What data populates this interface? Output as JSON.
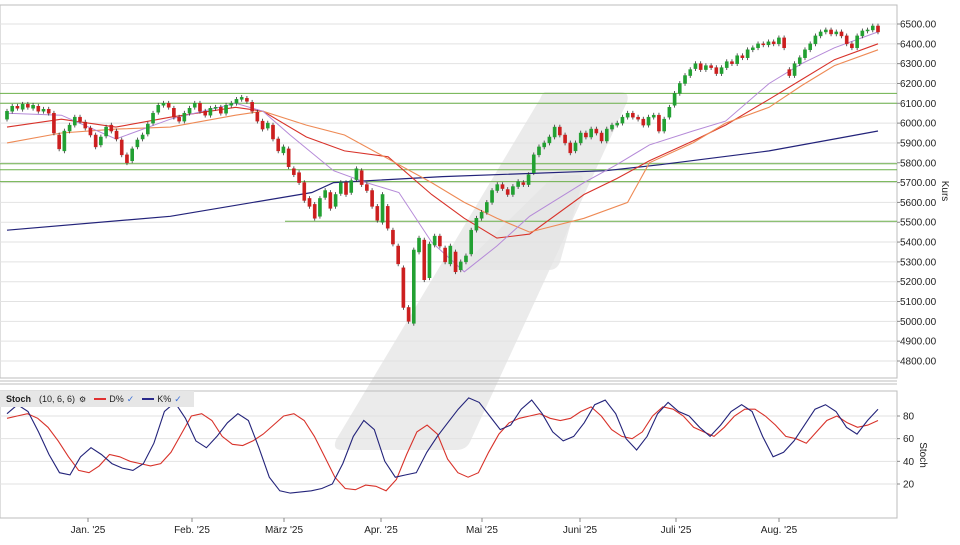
{
  "chart_data": [
    {
      "type": "candlestick",
      "title": "",
      "ylabel": "Kurs",
      "ylim": [
        4650,
        6560
      ],
      "y_ticks": [
        "6500.00",
        "6400.00",
        "6300.00",
        "6200.00",
        "6100.00",
        "6000.00",
        "5900.00",
        "5800.00",
        "5700.00",
        "5600.00",
        "5500.00",
        "5400.00",
        "5300.00",
        "5200.00",
        "5100.00",
        "5000.00",
        "4900.00",
        "4800.00"
      ],
      "x_ticks": [
        "Jan. '25",
        "Feb. '25",
        "März '25",
        "Apr. '25",
        "Mai '25",
        "Juni '25",
        "Juli '25",
        "Aug. '25"
      ],
      "horizontal_levels": [
        6150,
        6100,
        5795,
        5765,
        5705,
        5505
      ],
      "candles": [
        {
          "o": 6020,
          "c": 6060
        },
        {
          "o": 6060,
          "c": 6085
        },
        {
          "o": 6085,
          "c": 6075
        },
        {
          "o": 6070,
          "c": 6095
        },
        {
          "o": 6095,
          "c": 6080
        },
        {
          "o": 6075,
          "c": 6090
        },
        {
          "o": 6085,
          "c": 6060
        },
        {
          "o": 6060,
          "c": 6070
        },
        {
          "o": 6070,
          "c": 6050
        },
        {
          "o": 6050,
          "c": 5950
        },
        {
          "o": 5940,
          "c": 5870
        },
        {
          "o": 5860,
          "c": 5960
        },
        {
          "o": 5960,
          "c": 5990
        },
        {
          "o": 5990,
          "c": 6030
        },
        {
          "o": 6030,
          "c": 6010
        },
        {
          "o": 6005,
          "c": 5975
        },
        {
          "o": 5975,
          "c": 5940
        },
        {
          "o": 5940,
          "c": 5880
        },
        {
          "o": 5890,
          "c": 5930
        },
        {
          "o": 5935,
          "c": 5980
        },
        {
          "o": 5990,
          "c": 5960
        },
        {
          "o": 5960,
          "c": 5920
        },
        {
          "o": 5915,
          "c": 5840
        },
        {
          "o": 5840,
          "c": 5800
        },
        {
          "o": 5810,
          "c": 5870
        },
        {
          "o": 5880,
          "c": 5915
        },
        {
          "o": 5920,
          "c": 5940
        },
        {
          "o": 5945,
          "c": 5995
        },
        {
          "o": 6000,
          "c": 6050
        },
        {
          "o": 6055,
          "c": 6090
        },
        {
          "o": 6090,
          "c": 6100
        },
        {
          "o": 6100,
          "c": 6080
        },
        {
          "o": 6075,
          "c": 6030
        },
        {
          "o": 6030,
          "c": 6010
        },
        {
          "o": 6010,
          "c": 6050
        },
        {
          "o": 6050,
          "c": 6075
        },
        {
          "o": 6080,
          "c": 6100
        },
        {
          "o": 6100,
          "c": 6060
        },
        {
          "o": 6060,
          "c": 6040
        },
        {
          "o": 6040,
          "c": 6075
        },
        {
          "o": 6075,
          "c": 6080
        },
        {
          "o": 6080,
          "c": 6050
        },
        {
          "o": 6050,
          "c": 6090
        },
        {
          "o": 6090,
          "c": 6100
        },
        {
          "o": 6100,
          "c": 6120
        },
        {
          "o": 6120,
          "c": 6130
        },
        {
          "o": 6125,
          "c": 6110
        },
        {
          "o": 6105,
          "c": 6060
        },
        {
          "o": 6055,
          "c": 6010
        },
        {
          "o": 6010,
          "c": 5970
        },
        {
          "o": 5975,
          "c": 6000
        },
        {
          "o": 5990,
          "c": 5920
        },
        {
          "o": 5920,
          "c": 5860
        },
        {
          "o": 5850,
          "c": 5880
        },
        {
          "o": 5870,
          "c": 5780
        },
        {
          "o": 5770,
          "c": 5740
        },
        {
          "o": 5750,
          "c": 5700
        },
        {
          "o": 5700,
          "c": 5610
        },
        {
          "o": 5620,
          "c": 5580
        },
        {
          "o": 5590,
          "c": 5520
        },
        {
          "o": 5530,
          "c": 5620
        },
        {
          "o": 5625,
          "c": 5660
        },
        {
          "o": 5650,
          "c": 5570
        },
        {
          "o": 5580,
          "c": 5640
        },
        {
          "o": 5645,
          "c": 5700
        },
        {
          "o": 5700,
          "c": 5640
        },
        {
          "o": 5650,
          "c": 5710
        },
        {
          "o": 5715,
          "c": 5770
        },
        {
          "o": 5760,
          "c": 5690
        },
        {
          "o": 5690,
          "c": 5660
        },
        {
          "o": 5660,
          "c": 5580
        },
        {
          "o": 5580,
          "c": 5510
        },
        {
          "o": 5500,
          "c": 5640
        },
        {
          "o": 5580,
          "c": 5470
        },
        {
          "o": 5460,
          "c": 5390
        },
        {
          "o": 5380,
          "c": 5290
        },
        {
          "o": 5270,
          "c": 5070
        },
        {
          "o": 5070,
          "c": 5000
        },
        {
          "o": 4990,
          "c": 5360
        },
        {
          "o": 5350,
          "c": 5420
        },
        {
          "o": 5410,
          "c": 5210
        },
        {
          "o": 5220,
          "c": 5390
        },
        {
          "o": 5385,
          "c": 5430
        },
        {
          "o": 5430,
          "c": 5380
        },
        {
          "o": 5370,
          "c": 5300
        },
        {
          "o": 5290,
          "c": 5380
        },
        {
          "o": 5350,
          "c": 5250
        },
        {
          "o": 5260,
          "c": 5300
        },
        {
          "o": 5300,
          "c": 5330
        },
        {
          "o": 5340,
          "c": 5460
        },
        {
          "o": 5460,
          "c": 5520
        },
        {
          "o": 5520,
          "c": 5550
        },
        {
          "o": 5550,
          "c": 5600
        },
        {
          "o": 5600,
          "c": 5660
        },
        {
          "o": 5660,
          "c": 5690
        },
        {
          "o": 5690,
          "c": 5670
        },
        {
          "o": 5665,
          "c": 5640
        },
        {
          "o": 5640,
          "c": 5680
        },
        {
          "o": 5680,
          "c": 5705
        },
        {
          "o": 5700,
          "c": 5690
        },
        {
          "o": 5690,
          "c": 5740
        },
        {
          "o": 5750,
          "c": 5840
        },
        {
          "o": 5840,
          "c": 5880
        },
        {
          "o": 5880,
          "c": 5900
        },
        {
          "o": 5900,
          "c": 5930
        },
        {
          "o": 5930,
          "c": 5980
        },
        {
          "o": 5980,
          "c": 5940
        },
        {
          "o": 5940,
          "c": 5900
        },
        {
          "o": 5900,
          "c": 5850
        },
        {
          "o": 5860,
          "c": 5900
        },
        {
          "o": 5900,
          "c": 5950
        },
        {
          "o": 5950,
          "c": 5930
        },
        {
          "o": 5930,
          "c": 5970
        },
        {
          "o": 5970,
          "c": 5950
        },
        {
          "o": 5950,
          "c": 5910
        },
        {
          "o": 5910,
          "c": 5970
        },
        {
          "o": 5970,
          "c": 5990
        },
        {
          "o": 5990,
          "c": 6000
        },
        {
          "o": 6000,
          "c": 6030
        },
        {
          "o": 6030,
          "c": 6050
        },
        {
          "o": 6050,
          "c": 6030
        },
        {
          "o": 6030,
          "c": 6020
        },
        {
          "o": 6020,
          "c": 5990
        },
        {
          "o": 5990,
          "c": 6030
        },
        {
          "o": 6030,
          "c": 6040
        },
        {
          "o": 6040,
          "c": 5960
        },
        {
          "o": 5960,
          "c": 6020
        },
        {
          "o": 6030,
          "c": 6080
        },
        {
          "o": 6090,
          "c": 6150
        },
        {
          "o": 6150,
          "c": 6200
        },
        {
          "o": 6200,
          "c": 6240
        },
        {
          "o": 6240,
          "c": 6270
        },
        {
          "o": 6275,
          "c": 6300
        },
        {
          "o": 6300,
          "c": 6270
        },
        {
          "o": 6270,
          "c": 6290
        },
        {
          "o": 6290,
          "c": 6280
        },
        {
          "o": 6280,
          "c": 6250
        },
        {
          "o": 6250,
          "c": 6280
        },
        {
          "o": 6280,
          "c": 6310
        },
        {
          "o": 6310,
          "c": 6300
        },
        {
          "o": 6300,
          "c": 6340
        },
        {
          "o": 6340,
          "c": 6330
        },
        {
          "o": 6330,
          "c": 6370
        },
        {
          "o": 6370,
          "c": 6380
        },
        {
          "o": 6380,
          "c": 6400
        },
        {
          "o": 6400,
          "c": 6395
        },
        {
          "o": 6395,
          "c": 6410
        },
        {
          "o": 6410,
          "c": 6400
        },
        {
          "o": 6400,
          "c": 6430
        },
        {
          "o": 6430,
          "c": 6380
        },
        {
          "o": 6270,
          "c": 6240
        },
        {
          "o": 6240,
          "c": 6300
        },
        {
          "o": 6300,
          "c": 6330
        },
        {
          "o": 6330,
          "c": 6370
        },
        {
          "o": 6370,
          "c": 6400
        },
        {
          "o": 6400,
          "c": 6440
        },
        {
          "o": 6440,
          "c": 6460
        },
        {
          "o": 6460,
          "c": 6470
        },
        {
          "o": 6470,
          "c": 6450
        },
        {
          "o": 6450,
          "c": 6460
        },
        {
          "o": 6460,
          "c": 6440
        },
        {
          "o": 6440,
          "c": 6400
        },
        {
          "o": 6400,
          "c": 6380
        },
        {
          "o": 6380,
          "c": 6440
        },
        {
          "o": 6440,
          "c": 6465
        },
        {
          "o": 6465,
          "c": 6470
        },
        {
          "o": 6470,
          "c": 6490
        },
        {
          "o": 6490,
          "c": 6460
        }
      ],
      "sma_long": [
        [
          0,
          5460
        ],
        [
          30,
          5530
        ],
        [
          56,
          5650
        ],
        [
          60,
          5700
        ],
        [
          80,
          5730
        ],
        [
          110,
          5760
        ],
        [
          120,
          5790
        ],
        [
          140,
          5860
        ],
        [
          152,
          5920
        ],
        [
          160,
          5960
        ]
      ],
      "sma_mid": [
        [
          0,
          5980
        ],
        [
          10,
          6020
        ],
        [
          20,
          5980
        ],
        [
          30,
          6030
        ],
        [
          42,
          6080
        ],
        [
          47,
          6060
        ],
        [
          55,
          5930
        ],
        [
          62,
          5860
        ],
        [
          70,
          5830
        ],
        [
          78,
          5640
        ],
        [
          84,
          5520
        ],
        [
          90,
          5420
        ],
        [
          96,
          5440
        ],
        [
          106,
          5640
        ],
        [
          112,
          5720
        ],
        [
          118,
          5810
        ],
        [
          126,
          5910
        ],
        [
          132,
          5990
        ],
        [
          140,
          6120
        ],
        [
          146,
          6220
        ],
        [
          152,
          6320
        ],
        [
          160,
          6400
        ]
      ],
      "sma_short_orange": [
        [
          0,
          5900
        ],
        [
          10,
          5950
        ],
        [
          20,
          5970
        ],
        [
          30,
          5980
        ],
        [
          42,
          6040
        ],
        [
          47,
          6060
        ],
        [
          55,
          5990
        ],
        [
          62,
          5940
        ],
        [
          70,
          5820
        ],
        [
          78,
          5700
        ],
        [
          84,
          5600
        ],
        [
          90,
          5520
        ],
        [
          96,
          5450
        ],
        [
          106,
          5520
        ],
        [
          114,
          5600
        ],
        [
          118,
          5800
        ],
        [
          126,
          5900
        ],
        [
          132,
          6000
        ],
        [
          140,
          6080
        ],
        [
          146,
          6190
        ],
        [
          152,
          6290
        ],
        [
          160,
          6370
        ]
      ],
      "sma_short_violet": [
        [
          0,
          6050
        ],
        [
          10,
          6040
        ],
        [
          20,
          5920
        ],
        [
          30,
          6020
        ],
        [
          42,
          6100
        ],
        [
          47,
          6060
        ],
        [
          52,
          5940
        ],
        [
          60,
          5760
        ],
        [
          66,
          5700
        ],
        [
          72,
          5650
        ],
        [
          78,
          5400
        ],
        [
          84,
          5250
        ],
        [
          90,
          5380
        ],
        [
          96,
          5530
        ],
        [
          106,
          5700
        ],
        [
          112,
          5790
        ],
        [
          118,
          5890
        ],
        [
          126,
          5960
        ],
        [
          132,
          6010
        ],
        [
          140,
          6200
        ],
        [
          146,
          6300
        ],
        [
          152,
          6380
        ],
        [
          160,
          6460
        ]
      ]
    },
    {
      "type": "line",
      "title": "Stoch",
      "params": "(10, 6, 6)",
      "ylabel": "Stoch",
      "ylim": [
        0,
        100
      ],
      "y_ticks": [
        "80",
        "60",
        "40",
        "20"
      ],
      "series": [
        {
          "name": "D%",
          "values": [
            78,
            80,
            82,
            78,
            70,
            58,
            44,
            32,
            30,
            36,
            46,
            44,
            40,
            38,
            36,
            38,
            48,
            64,
            80,
            82,
            76,
            62,
            55,
            54,
            58,
            64,
            72,
            80,
            82,
            76,
            62,
            44,
            26,
            16,
            15,
            19,
            18,
            14,
            24,
            46,
            66,
            72,
            64,
            42,
            30,
            26,
            30,
            48,
            64,
            74,
            78,
            80,
            82,
            78,
            76,
            78,
            84,
            88,
            80,
            68,
            62,
            60,
            66,
            80,
            88,
            86,
            80,
            70,
            66,
            62,
            70,
            80,
            86,
            86,
            80,
            72,
            62,
            60,
            56,
            66,
            76,
            80,
            74,
            70,
            72,
            76
          ]
        },
        {
          "name": "K%",
          "values": [
            82,
            90,
            84,
            66,
            46,
            30,
            28,
            44,
            52,
            46,
            38,
            34,
            32,
            38,
            56,
            84,
            92,
            78,
            58,
            52,
            62,
            74,
            82,
            76,
            52,
            26,
            14,
            12,
            13,
            14,
            16,
            20,
            38,
            62,
            76,
            68,
            40,
            26,
            28,
            30,
            48,
            62,
            74,
            86,
            96,
            92,
            80,
            68,
            72,
            86,
            94,
            82,
            66,
            58,
            62,
            74,
            90,
            94,
            82,
            60,
            50,
            62,
            82,
            92,
            84,
            80,
            70,
            62,
            72,
            84,
            90,
            84,
            62,
            44,
            48,
            58,
            72,
            86,
            90,
            84,
            70,
            64,
            76,
            86
          ]
        }
      ]
    }
  ],
  "legend": {
    "title": "Stoch",
    "params": "(10, 6, 6)",
    "settings_icon": "gear-icon",
    "items": [
      {
        "label": "D%",
        "color": "#e03030"
      },
      {
        "label": "K%",
        "color": "#2a2a8c"
      }
    ]
  },
  "colors": {
    "up_candle": "#22a032",
    "down_candle": "#cc1f1f",
    "level_line": "#6cb04a",
    "sma_long": "#23237a",
    "sma_mid": "#d8322a",
    "sma_short_orange": "#ee8a55",
    "sma_short_violet": "#b58ad8",
    "grid": "#e2e2e2",
    "watermark": "#e4e4e4"
  }
}
